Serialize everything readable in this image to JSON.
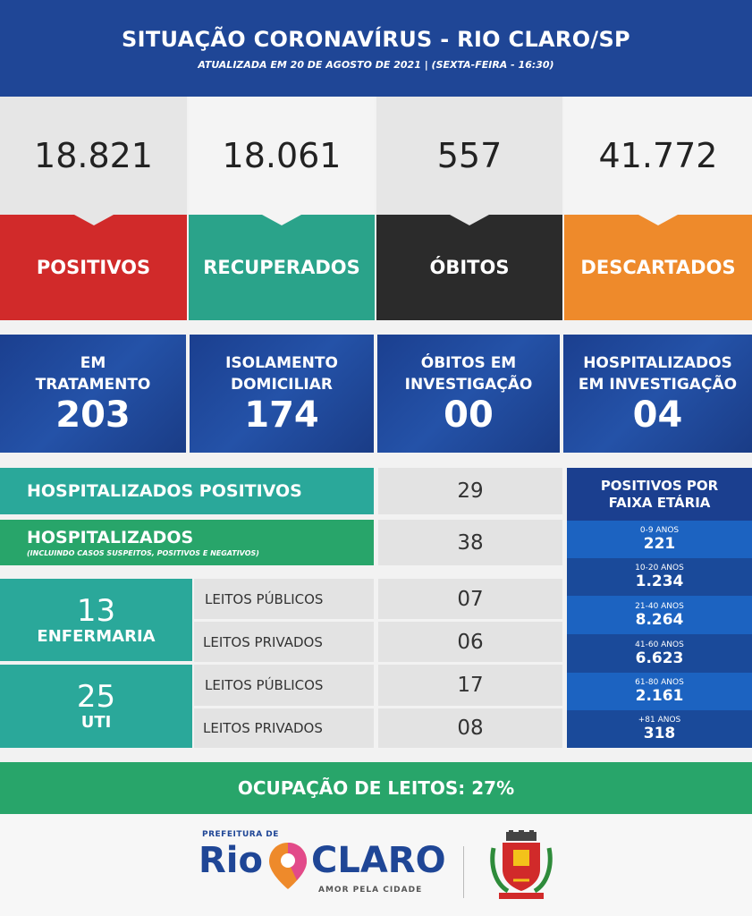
{
  "header": {
    "title": "SITUAÇÃO CORONAVÍRUS - RIO CLARO/SP",
    "subtitle": "ATUALIZADA EM 20 DE AGOSTO DE 2021 | (SEXTA-FEIRA - 16:30)"
  },
  "stats": [
    {
      "value": "18.821",
      "label": "POSITIVOS",
      "color": "#d12a2a"
    },
    {
      "value": "18.061",
      "label": "RECUPERADOS",
      "color": "#2aa38a"
    },
    {
      "value": "557",
      "label": "ÓBITOS",
      "color": "#2b2b2b"
    },
    {
      "value": "41.772",
      "label": "DESCARTADOS",
      "color": "#ee8a2b"
    }
  ],
  "boxes": [
    {
      "line1": "EM",
      "line2": "TRATAMENTO",
      "value": "203"
    },
    {
      "line1": "ISOLAMENTO",
      "line2": "DOMICILIAR",
      "value": "174"
    },
    {
      "line1": "ÓBITOS EM",
      "line2": "INVESTIGAÇÃO",
      "value": "00"
    },
    {
      "line1": "HOSPITALIZADOS",
      "line2": "EM INVESTIGAÇÃO",
      "value": "04"
    }
  ],
  "hospital": {
    "positive_label": "HOSPITALIZADOS POSITIVOS",
    "positive_value": "29",
    "total_label": "HOSPITALIZADOS",
    "total_sub": "(INCLUINDO CASOS SUSPEITOS, POSITIVOS E NEGATIVOS)",
    "total_value": "38",
    "ward_value": "13",
    "ward_label": "ENFERMARIA",
    "icu_value": "25",
    "icu_label": "UTI",
    "ward_public_label": "LEITOS PÚBLICOS",
    "ward_public_value": "07",
    "ward_private_label": "LEITOS PRIVADOS",
    "ward_private_value": "06",
    "icu_public_label": "LEITOS PÚBLICOS",
    "icu_public_value": "17",
    "icu_private_label": "LEITOS PRIVADOS",
    "icu_private_value": "08"
  },
  "ages": {
    "title_line1": "POSITIVOS POR",
    "title_line2": "FAIXA ETÁRIA",
    "groups": [
      {
        "label": "0-9 ANOS",
        "value": "221"
      },
      {
        "label": "10-20 ANOS",
        "value": "1.234"
      },
      {
        "label": "21-40 ANOS",
        "value": "8.264"
      },
      {
        "label": "41-60 ANOS",
        "value": "6.623"
      },
      {
        "label": "61-80 ANOS",
        "value": "2.161"
      },
      {
        "label": "+81 ANOS",
        "value": "318"
      }
    ]
  },
  "occupancy": "OCUPAÇÃO DE LEITOS: 27%",
  "logo": {
    "prefix": "PREFEITURA DE",
    "name_left": "Rio",
    "name_right": "CLARO",
    "tagline": "AMOR PELA CIDADE"
  }
}
